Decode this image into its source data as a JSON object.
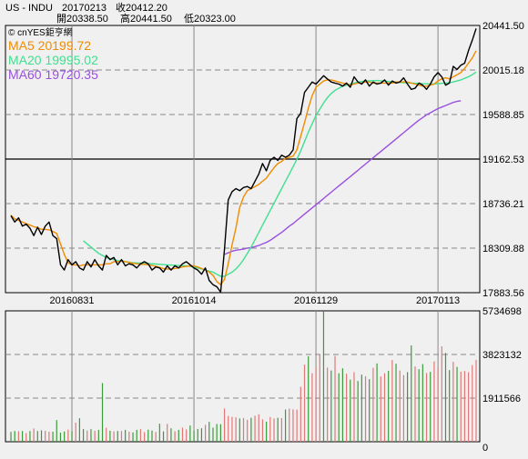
{
  "header": {
    "symbol": "US - INDU",
    "date": "20170213",
    "close_label": "收20412.20",
    "open_label": "開20338.50",
    "high_label": "高20441.50",
    "low_label": "低20323.00"
  },
  "legend": {
    "source": "© cnYES鉅亨網",
    "ma5": "MA5 20199.72",
    "ma20": "MA20 19995.02",
    "ma60": "MA60 19720.35"
  },
  "colors": {
    "price": "#000000",
    "ma5": "#f08c00",
    "ma20": "#40e090",
    "ma60": "#9a50e0",
    "vol_up": "#e07878",
    "vol_down": "#3c9a3c",
    "grid": "#888888"
  },
  "chart_data": [
    {
      "type": "line",
      "name": "price",
      "x_labels": [
        "20160831",
        "20161014",
        "20161129",
        "20170113"
      ],
      "x_label_index": [
        16,
        48,
        80,
        112
      ],
      "ylim": [
        17883.56,
        20441.5
      ],
      "yticks": [
        "20441.50",
        "20015.18",
        "19588.85",
        "19162.53",
        "18736.21",
        "18309.88",
        "17883.56"
      ],
      "yticks_values": [
        20441.5,
        20015.18,
        19588.85,
        19162.53,
        18736.21,
        18309.88,
        17883.56
      ],
      "grid": "dashed horizontal and vertical",
      "series": [
        {
          "name": "price",
          "values": [
            18620,
            18560,
            18600,
            18520,
            18540,
            18500,
            18430,
            18510,
            18440,
            18520,
            18560,
            18430,
            18400,
            18150,
            18100,
            18200,
            18150,
            18180,
            18120,
            18100,
            18180,
            18130,
            18200,
            18140,
            18100,
            18240,
            18200,
            18220,
            18150,
            18200,
            18140,
            18160,
            18150,
            18120,
            18160,
            18180,
            18160,
            18100,
            18130,
            18120,
            18080,
            18140,
            18100,
            18140,
            18120,
            18160,
            18180,
            18150,
            18120,
            18100,
            18060,
            18120,
            18000,
            17960,
            17940,
            17890,
            18300,
            18770,
            18850,
            18880,
            18860,
            18890,
            18900,
            18880,
            18950,
            19020,
            19120,
            19050,
            19150,
            19180,
            19150,
            19200,
            19180,
            19200,
            19250,
            19550,
            19600,
            19800,
            19850,
            19900,
            19880,
            19920,
            19960,
            19930,
            19900,
            19890,
            19880,
            19860,
            19890,
            19850,
            19950,
            19900,
            19880,
            19920,
            19860,
            19900,
            19880,
            19890,
            19920,
            19870,
            19910,
            19890,
            19900,
            19940,
            19880,
            19830,
            19840,
            19890,
            19870,
            19830,
            19880,
            19950,
            19990,
            19950,
            19870,
            19890,
            20050,
            20020,
            20060,
            20080,
            20200,
            20300,
            20412
          ]
        },
        {
          "name": "MA5",
          "values": [
            18625,
            18590,
            18575,
            18560,
            18545,
            18530,
            18515,
            18505,
            18490,
            18490,
            18485,
            18470,
            18450,
            18350,
            18250,
            18170,
            18150,
            18150,
            18140,
            18150,
            18150,
            18150,
            18150,
            18150,
            18150,
            18160,
            18160,
            18180,
            18180,
            18190,
            18180,
            18175,
            18165,
            18160,
            18155,
            18155,
            18150,
            18145,
            18135,
            18125,
            18115,
            18110,
            18110,
            18115,
            18120,
            18130,
            18135,
            18140,
            18140,
            18130,
            18115,
            18100,
            18080,
            18050,
            17990,
            17960,
            18010,
            18160,
            18340,
            18500,
            18700,
            18800,
            18860,
            18880,
            18900,
            18920,
            18950,
            18980,
            19030,
            19080,
            19120,
            19140,
            19170,
            19180,
            19190,
            19250,
            19380,
            19510,
            19650,
            19770,
            19850,
            19880,
            19910,
            19920,
            19920,
            19910,
            19900,
            19890,
            19880,
            19870,
            19880,
            19890,
            19890,
            19900,
            19900,
            19890,
            19890,
            19890,
            19890,
            19890,
            19890,
            19900,
            19900,
            19900,
            19900,
            19890,
            19880,
            19870,
            19860,
            19860,
            19870,
            19880,
            19910,
            19930,
            19940,
            19930,
            19950,
            19970,
            19990,
            20030,
            20080,
            20130,
            20200
          ]
        },
        {
          "name": "MA20",
          "values": [
            null,
            null,
            null,
            null,
            null,
            null,
            null,
            null,
            null,
            null,
            null,
            null,
            null,
            null,
            null,
            null,
            null,
            null,
            null,
            18380,
            18350,
            18320,
            18290,
            18260,
            18240,
            18220,
            18210,
            18200,
            18190,
            18185,
            18180,
            18175,
            18170,
            18168,
            18166,
            18164,
            18162,
            18160,
            18158,
            18155,
            18152,
            18150,
            18148,
            18146,
            18144,
            18142,
            18140,
            18135,
            18130,
            18120,
            18110,
            18100,
            18090,
            18080,
            18060,
            18040,
            18040,
            18060,
            18080,
            18110,
            18150,
            18200,
            18260,
            18320,
            18390,
            18460,
            18530,
            18600,
            18670,
            18740,
            18810,
            18880,
            18950,
            19020,
            19090,
            19160,
            19240,
            19330,
            19420,
            19500,
            19580,
            19640,
            19700,
            19750,
            19790,
            19820,
            19840,
            19860,
            19870,
            19880,
            19890,
            19900,
            19905,
            19910,
            19912,
            19913,
            19914,
            19912,
            19910,
            19905,
            19900,
            19898,
            19896,
            19894,
            19892,
            19890,
            19888,
            19886,
            19884,
            19883,
            19882,
            19882,
            19884,
            19887,
            19890,
            19894,
            19900,
            19910,
            19920,
            19935,
            19950,
            19970,
            19995
          ]
        },
        {
          "name": "MA60",
          "values": [
            null,
            null,
            null,
            null,
            null,
            null,
            null,
            null,
            null,
            null,
            null,
            null,
            null,
            null,
            null,
            null,
            null,
            null,
            null,
            null,
            null,
            null,
            null,
            null,
            null,
            null,
            null,
            null,
            null,
            null,
            null,
            null,
            null,
            null,
            null,
            null,
            null,
            null,
            null,
            null,
            null,
            null,
            null,
            null,
            null,
            null,
            null,
            null,
            null,
            null,
            null,
            null,
            null,
            null,
            null,
            null,
            18250,
            18265,
            18280,
            18290,
            18295,
            18300,
            18310,
            18315,
            18325,
            18335,
            18350,
            18365,
            18385,
            18410,
            18435,
            18460,
            18490,
            18520,
            18545,
            18575,
            18605,
            18635,
            18665,
            18695,
            18725,
            18755,
            18785,
            18815,
            18845,
            18875,
            18905,
            18935,
            18965,
            18995,
            19025,
            19055,
            19085,
            19115,
            19145,
            19175,
            19205,
            19235,
            19265,
            19295,
            19325,
            19355,
            19385,
            19415,
            19445,
            19475,
            19505,
            19535,
            19560,
            19585,
            19605,
            19625,
            19645,
            19660,
            19675,
            19690,
            19705,
            19715,
            19720
          ]
        }
      ]
    },
    {
      "type": "bar",
      "name": "volume",
      "ylim": [
        0,
        5734698
      ],
      "yticks": [
        "5734698",
        "3823132",
        "1911566",
        "0"
      ],
      "yticks_values": [
        5734698,
        3823132,
        1911566,
        0
      ],
      "values": [
        430000,
        470000,
        460000,
        470000,
        380000,
        470000,
        580000,
        470000,
        500000,
        480000,
        440000,
        440000,
        950000,
        400000,
        450000,
        530000,
        470000,
        840000,
        1030000,
        560000,
        490000,
        550000,
        480000,
        520000,
        2570000,
        610000,
        480000,
        450000,
        470000,
        470000,
        520000,
        440000,
        410000,
        520000,
        550000,
        420000,
        530000,
        490000,
        430000,
        790000,
        450000,
        780000,
        590000,
        460000,
        520000,
        620000,
        540000,
        710000,
        480000,
        560000,
        590000,
        740000,
        870000,
        620000,
        780000,
        770000,
        1460000,
        1130000,
        1090000,
        1070000,
        1020000,
        1040000,
        960000,
        1050000,
        1140000,
        1200000,
        980000,
        880000,
        1080000,
        1020000,
        1050000,
        1040000,
        1410000,
        1450000,
        1420000,
        1410000,
        2410000,
        3380000,
        3740000,
        3000000,
        3270000,
        3810000,
        5734698,
        3250000,
        3120000,
        3760000,
        3000000,
        3220000,
        2980000,
        2720000,
        3050000,
        2660000,
        2940000,
        2870000,
        2740000,
        3240000,
        3430000,
        2860000,
        3000000,
        3110000,
        3580000,
        3420000,
        3120000,
        2920000,
        3050000,
        4220000,
        3300000,
        3180000,
        3400000,
        3010000,
        3060000,
        3520000,
        3240000,
        4180000,
        3890000,
        3140000,
        3500000,
        3280000,
        3070000,
        3100000,
        3050000,
        3360000,
        3590000
      ],
      "colors": [
        "d",
        "d",
        "u",
        "d",
        "u",
        "d",
        "u",
        "d",
        "d",
        "u",
        "u",
        "d",
        "d",
        "d",
        "d",
        "u",
        "d",
        "u",
        "d",
        "d",
        "u",
        "d",
        "u",
        "d",
        "d",
        "u",
        "d",
        "u",
        "d",
        "u",
        "d",
        "u",
        "d",
        "d",
        "u",
        "u",
        "d",
        "d",
        "u",
        "d",
        "d",
        "u",
        "d",
        "u",
        "d",
        "u",
        "u",
        "d",
        "d",
        "d",
        "d",
        "u",
        "d",
        "d",
        "d",
        "d",
        "u",
        "u",
        "u",
        "u",
        "d",
        "u",
        "u",
        "d",
        "u",
        "u",
        "u",
        "d",
        "u",
        "u",
        "d",
        "u",
        "d",
        "u",
        "u",
        "u",
        "u",
        "u",
        "d",
        "u",
        "u",
        "u",
        "d",
        "u",
        "d",
        "u",
        "d",
        "d",
        "u",
        "d",
        "u",
        "d",
        "d",
        "u",
        "d",
        "u",
        "d",
        "u",
        "u",
        "d",
        "u",
        "d",
        "u",
        "u",
        "d",
        "d",
        "u",
        "d",
        "d",
        "u",
        "d",
        "u",
        "u",
        "u",
        "d",
        "d",
        "u",
        "d",
        "u",
        "u",
        "u",
        "u",
        "u"
      ]
    }
  ]
}
